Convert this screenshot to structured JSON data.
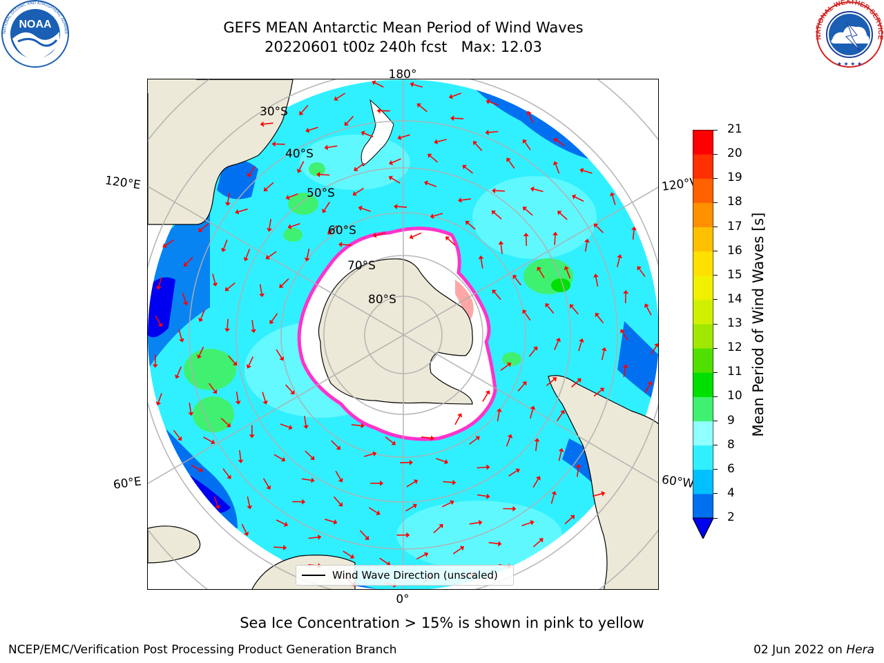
{
  "header": {
    "title_line1": "GEFS MEAN Antarctic Mean Period of Wind Waves",
    "title_line2": "20220601 t00z 240h fcst   Max: 12.03"
  },
  "logos": {
    "noaa": {
      "text": "NOAA",
      "ring_text": "NATIONAL OCEANIC AND ATMOSPHERIC ADMINISTRATION · U.S. DEPARTMENT OF COMMERCE",
      "color": "#1a5fb4"
    },
    "nws": {
      "ring_text": "NATIONAL WEATHER SERVICE",
      "color": "#d42020"
    }
  },
  "map": {
    "projection": "south-polar-stereographic",
    "longitude_labels": {
      "top": "180°",
      "bottom": "0°",
      "upper_left": "120°E",
      "upper_right": "120°W",
      "lower_left": "60°E",
      "lower_right": "60°W"
    },
    "latitude_labels": [
      "30°S",
      "40°S",
      "50°S",
      "60°S",
      "70°S",
      "80°S"
    ],
    "colors": {
      "land": "#ece9d8",
      "ice": "#ffffff",
      "ice_edge": "#ff33cc",
      "arrow": "#ff0000",
      "grid": "#b0b0b0"
    }
  },
  "legend": {
    "label": "Wind Wave Direction (unscaled)"
  },
  "colorbar": {
    "label": "Mean Period of Wind Waves [s]",
    "ticks": [
      "2",
      "4",
      "6",
      "8",
      "9",
      "10",
      "11",
      "12",
      "13",
      "14",
      "15",
      "16",
      "17",
      "18",
      "19",
      "20",
      "21"
    ],
    "colors": [
      "#0070f0",
      "#00c0ff",
      "#30f0ff",
      "#90ffff",
      "#40f070",
      "#00e000",
      "#50e000",
      "#a0e800",
      "#d0f000",
      "#f0f000",
      "#ffe000",
      "#ffc000",
      "#ff9000",
      "#ff6000",
      "#ff3000",
      "#ff0000"
    ],
    "under_color": "#0000f0"
  },
  "caption": "Sea Ice Concentration > 15% is shown in pink to yellow",
  "footer": {
    "left": "NCEP/EMC/Verification Post Processing Product Generation Branch",
    "right_date": "02 Jun 2022 on",
    "right_host": "Hera"
  }
}
